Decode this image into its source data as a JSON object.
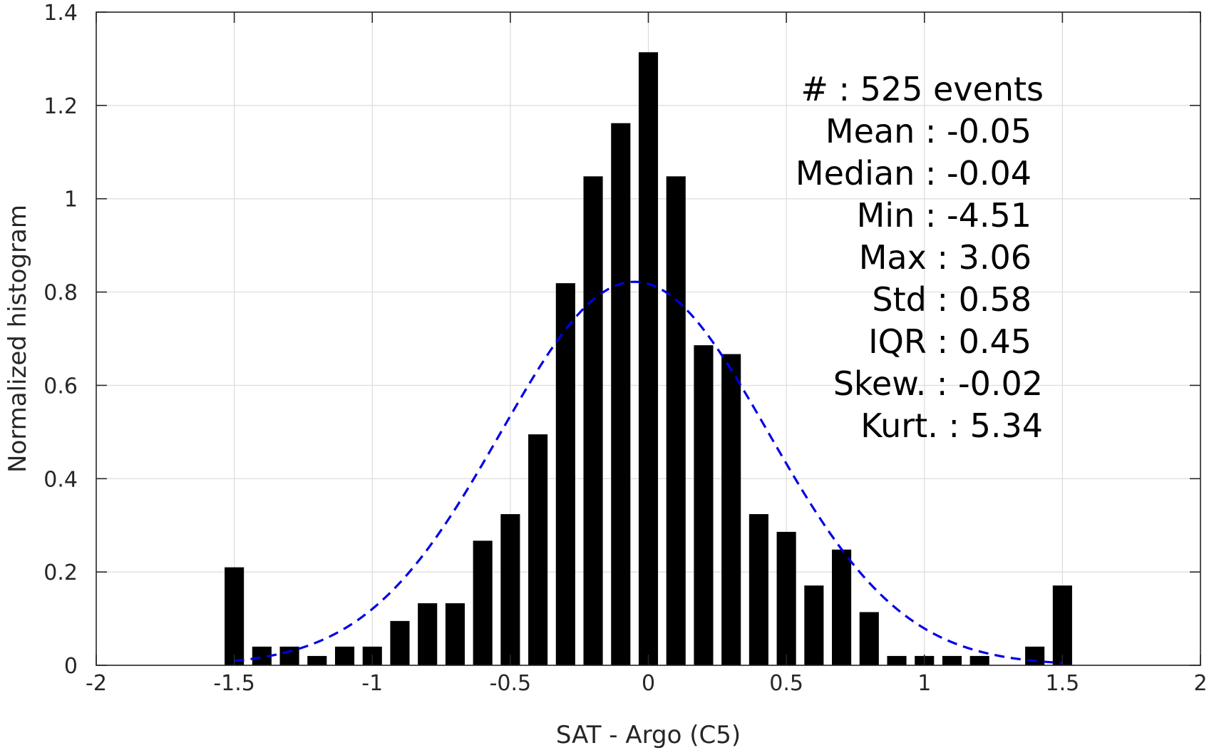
{
  "chart_data": {
    "type": "bar",
    "xlabel": "SAT - Argo (C5)",
    "ylabel": "Normalized histogram",
    "xlim": [
      -2,
      2
    ],
    "ylim": [
      0,
      1.4
    ],
    "xticks": [
      -2,
      -1.5,
      -1,
      -0.5,
      0,
      0.5,
      1,
      1.5,
      2
    ],
    "xtick_labels": [
      "-2",
      "-1.5",
      "-1",
      "-0.5",
      "0",
      "0.5",
      "1",
      "1.5",
      "2"
    ],
    "yticks": [
      0,
      0.2,
      0.4,
      0.6,
      0.8,
      1,
      1.2,
      1.4
    ],
    "ytick_labels": [
      "0",
      "0.2",
      "0.4",
      "0.6",
      "0.8",
      "1",
      "1.2",
      "1.4"
    ],
    "grid": true,
    "bar_width": 0.07,
    "bar_color": "#000000",
    "bins": [
      {
        "x": -1.5,
        "y": 0.21
      },
      {
        "x": -1.4,
        "y": 0.04
      },
      {
        "x": -1.3,
        "y": 0.04
      },
      {
        "x": -1.2,
        "y": 0.02
      },
      {
        "x": -1.1,
        "y": 0.04
      },
      {
        "x": -1.0,
        "y": 0.04
      },
      {
        "x": -0.9,
        "y": 0.095
      },
      {
        "x": -0.8,
        "y": 0.133
      },
      {
        "x": -0.7,
        "y": 0.133
      },
      {
        "x": -0.6,
        "y": 0.267
      },
      {
        "x": -0.5,
        "y": 0.324
      },
      {
        "x": -0.4,
        "y": 0.495
      },
      {
        "x": -0.3,
        "y": 0.819
      },
      {
        "x": -0.2,
        "y": 1.048
      },
      {
        "x": -0.1,
        "y": 1.162
      },
      {
        "x": 0.0,
        "y": 1.314
      },
      {
        "x": 0.1,
        "y": 1.048
      },
      {
        "x": 0.2,
        "y": 0.686
      },
      {
        "x": 0.3,
        "y": 0.667
      },
      {
        "x": 0.4,
        "y": 0.324
      },
      {
        "x": 0.5,
        "y": 0.286
      },
      {
        "x": 0.6,
        "y": 0.171
      },
      {
        "x": 0.7,
        "y": 0.248
      },
      {
        "x": 0.8,
        "y": 0.114
      },
      {
        "x": 0.9,
        "y": 0.02
      },
      {
        "x": 1.0,
        "y": 0.02
      },
      {
        "x": 1.1,
        "y": 0.02
      },
      {
        "x": 1.2,
        "y": 0.02
      },
      {
        "x": 1.4,
        "y": 0.04
      },
      {
        "x": 1.5,
        "y": 0.171
      }
    ],
    "fit_curve": {
      "type": "gaussian",
      "style": "dashed",
      "color": "#0000e6",
      "mean": -0.05,
      "std": 0.485,
      "peak": 0.822,
      "x_range": [
        -1.5,
        1.5
      ]
    },
    "stats_lines": [
      "#  : 525 events",
      "Mean : -0.05",
      "Median : -0.04",
      "Min : -4.51",
      "Max : 3.06",
      "Std : 0.58",
      "IQR : 0.45",
      "Skew. : -0.02",
      "Kurt. : 5.34"
    ]
  }
}
